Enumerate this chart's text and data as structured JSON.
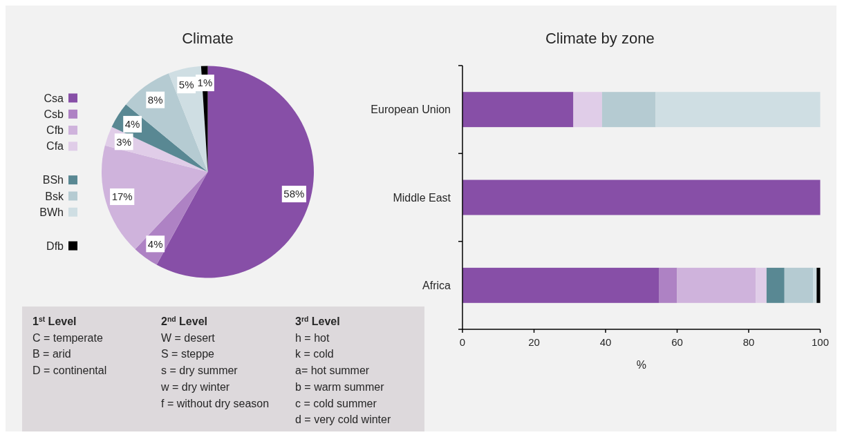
{
  "chart_data": [
    {
      "type": "pie",
      "title": "Climate",
      "categories": [
        "Csa",
        "Csb",
        "Cfb",
        "Cfa",
        "BSh",
        "Bsk",
        "BWh",
        "Dfb"
      ],
      "values": [
        58,
        4,
        17,
        3,
        4,
        8,
        5,
        1
      ],
      "colors": [
        "#874fa7",
        "#ae82c4",
        "#cfb3dc",
        "#e0cde8",
        "#598893",
        "#b5cbd2",
        "#cfdee3",
        "#000000"
      ],
      "value_labels": [
        "58%",
        "4%",
        "17%",
        "3%",
        "4%",
        "8%",
        "5%",
        "1%"
      ],
      "legend": "left"
    },
    {
      "type": "bar",
      "title": "Climate by zone",
      "orientation": "horizontal",
      "stacked": true,
      "categories": [
        "European Union",
        "Middle East",
        "Africa"
      ],
      "series": [
        {
          "color": "#874fa7",
          "values": [
            31,
            100,
            55
          ]
        },
        {
          "color": "#ae82c4",
          "values": [
            null,
            null,
            5
          ]
        },
        {
          "color": "#cfb3dc",
          "values": [
            null,
            null,
            22
          ]
        },
        {
          "color": "#e0cde8",
          "values": [
            8,
            null,
            3
          ]
        },
        {
          "color": "#598893",
          "values": [
            null,
            null,
            5
          ]
        },
        {
          "color": "#b5cbd2",
          "values": [
            15,
            null,
            8
          ]
        },
        {
          "color": "#cfdee3",
          "values": [
            46,
            null,
            1
          ]
        },
        {
          "color": "#000000",
          "values": [
            null,
            null,
            1
          ]
        }
      ],
      "xlim": [
        0,
        100
      ],
      "xticks": [
        0,
        20,
        40,
        60,
        80,
        100
      ],
      "xlabel": "%"
    },
    {
      "type": "other",
      "title": "1$^{st}$ Level",
      "annotations": [
        "C = temperate",
        "B = arid",
        "D = continental"
      ]
    },
    {
      "type": "other",
      "title": "2$^{nd}$ Level",
      "annotations": [
        "W = desert",
        "S = steppe",
        "s = dry summer",
        "w = dry winter",
        "f = without dry season"
      ]
    },
    {
      "type": "other",
      "title": "3$^{rd}$ Level",
      "annotations": [
        "h = hot",
        "k = cold",
        "a= hot summer",
        "b = warm summer",
        "c = cold summer",
        "d = very cold winter"
      ]
    }
  ]
}
